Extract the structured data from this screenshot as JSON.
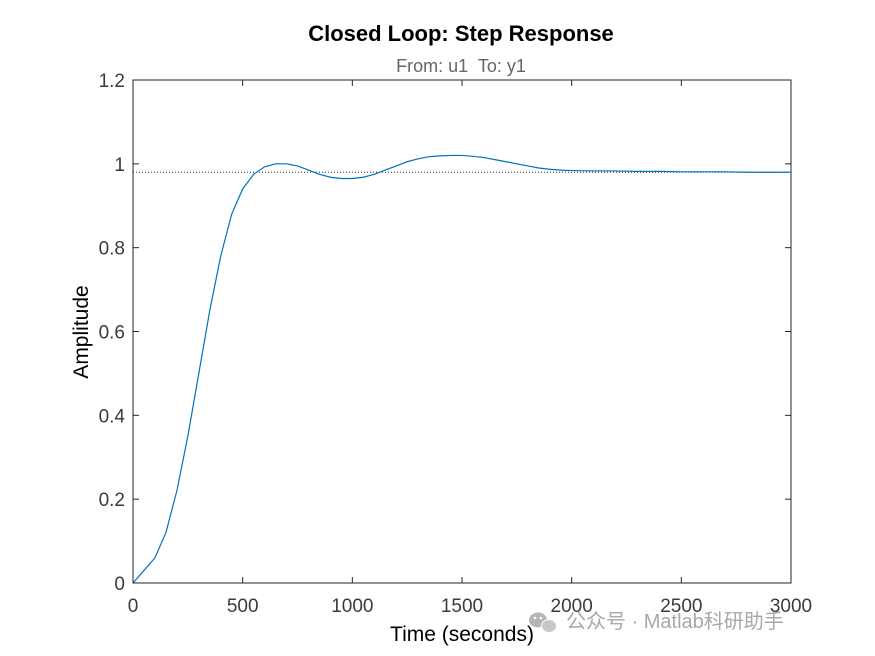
{
  "chart_data": {
    "type": "line",
    "title": "Closed Loop: Step Response",
    "subtitle": "From: u1  To: y1",
    "xlabel": "Time (seconds)",
    "ylabel": "Amplitude",
    "xlim": [
      0,
      3000
    ],
    "ylim": [
      0,
      1.2
    ],
    "xticks": [
      0,
      500,
      1000,
      1500,
      2000,
      2500,
      3000
    ],
    "xtick_labels": [
      "0",
      "500",
      "1000",
      "1500",
      "2000",
      "2500",
      "3000"
    ],
    "yticks": [
      0,
      0.2,
      0.4,
      0.6,
      0.8,
      1.0,
      1.2
    ],
    "ytick_labels": [
      "0",
      "0.2",
      "0.4",
      "0.6",
      "0.8",
      "1",
      "1.2"
    ],
    "grid": false,
    "reference_line": {
      "y": 0.98,
      "style": "dotted"
    },
    "series": [
      {
        "color": "#0072bd",
        "x": [
          0,
          50,
          100,
          150,
          200,
          250,
          300,
          350,
          400,
          450,
          500,
          550,
          600,
          650,
          700,
          750,
          800,
          850,
          900,
          950,
          1000,
          1050,
          1100,
          1150,
          1200,
          1250,
          1300,
          1350,
          1400,
          1450,
          1500,
          1550,
          1600,
          1650,
          1700,
          1750,
          1800,
          1850,
          1900,
          1950,
          2000,
          2100,
          2200,
          2300,
          2400,
          2500,
          2600,
          2700,
          2800,
          2900,
          3000
        ],
        "y": [
          0,
          0.03,
          0.06,
          0.12,
          0.22,
          0.35,
          0.5,
          0.65,
          0.78,
          0.88,
          0.94,
          0.975,
          0.993,
          1.0,
          1.0,
          0.995,
          0.985,
          0.975,
          0.968,
          0.965,
          0.965,
          0.968,
          0.975,
          0.985,
          0.995,
          1.005,
          1.012,
          1.017,
          1.019,
          1.02,
          1.02,
          1.018,
          1.015,
          1.01,
          1.005,
          1.0,
          0.995,
          0.99,
          0.987,
          0.985,
          0.984,
          0.983,
          0.983,
          0.982,
          0.982,
          0.981,
          0.981,
          0.981,
          0.98,
          0.98,
          0.98
        ]
      }
    ]
  },
  "watermark": {
    "icon": "wechat-icon",
    "text": "公众号 · Matlab科研助手"
  },
  "colors": {
    "line": "#0072bd",
    "axes": "#262626",
    "tick_text": "#3b3b3b",
    "subtitle": "#666666",
    "watermark": "#a8a8a8"
  }
}
